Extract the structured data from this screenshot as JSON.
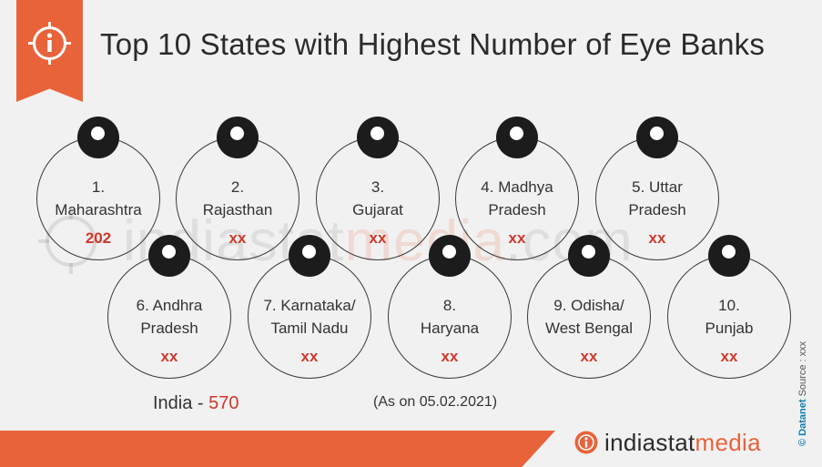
{
  "title": "Top 10 States with Highest Number of Eye Banks",
  "india": {
    "label": "India",
    "value": "570"
  },
  "as_on": "(As on 05.02.2021)",
  "source": {
    "brand": "© Datanet",
    "text": "Source : xxx"
  },
  "watermark": {
    "a": "indiastat",
    "b": "media",
    "c": ".com"
  },
  "logo": {
    "a": "indiastat",
    "b": "media"
  },
  "chart_data": {
    "type": "table",
    "title": "Top 10 States with Highest Number of Eye Banks",
    "rows": [
      {
        "label": "1.\nMaharashtra",
        "value": "202"
      },
      {
        "label": "2.\nRajasthan",
        "value": "xx"
      },
      {
        "label": "3.\nGujarat",
        "value": "xx"
      },
      {
        "label": "4. Madhya\nPradesh",
        "value": "xx"
      },
      {
        "label": "5. Uttar\nPradesh",
        "value": "xx"
      },
      {
        "label": "6. Andhra\nPradesh",
        "value": "xx"
      },
      {
        "label": "7. Karnataka/\nTamil Nadu",
        "value": "xx"
      },
      {
        "label": "8.\nHaryana",
        "value": "xx"
      },
      {
        "label": "9. Odisha/\nWest Bengal",
        "value": "xx"
      },
      {
        "label": "10.\nPunjab",
        "value": "xx"
      }
    ]
  }
}
